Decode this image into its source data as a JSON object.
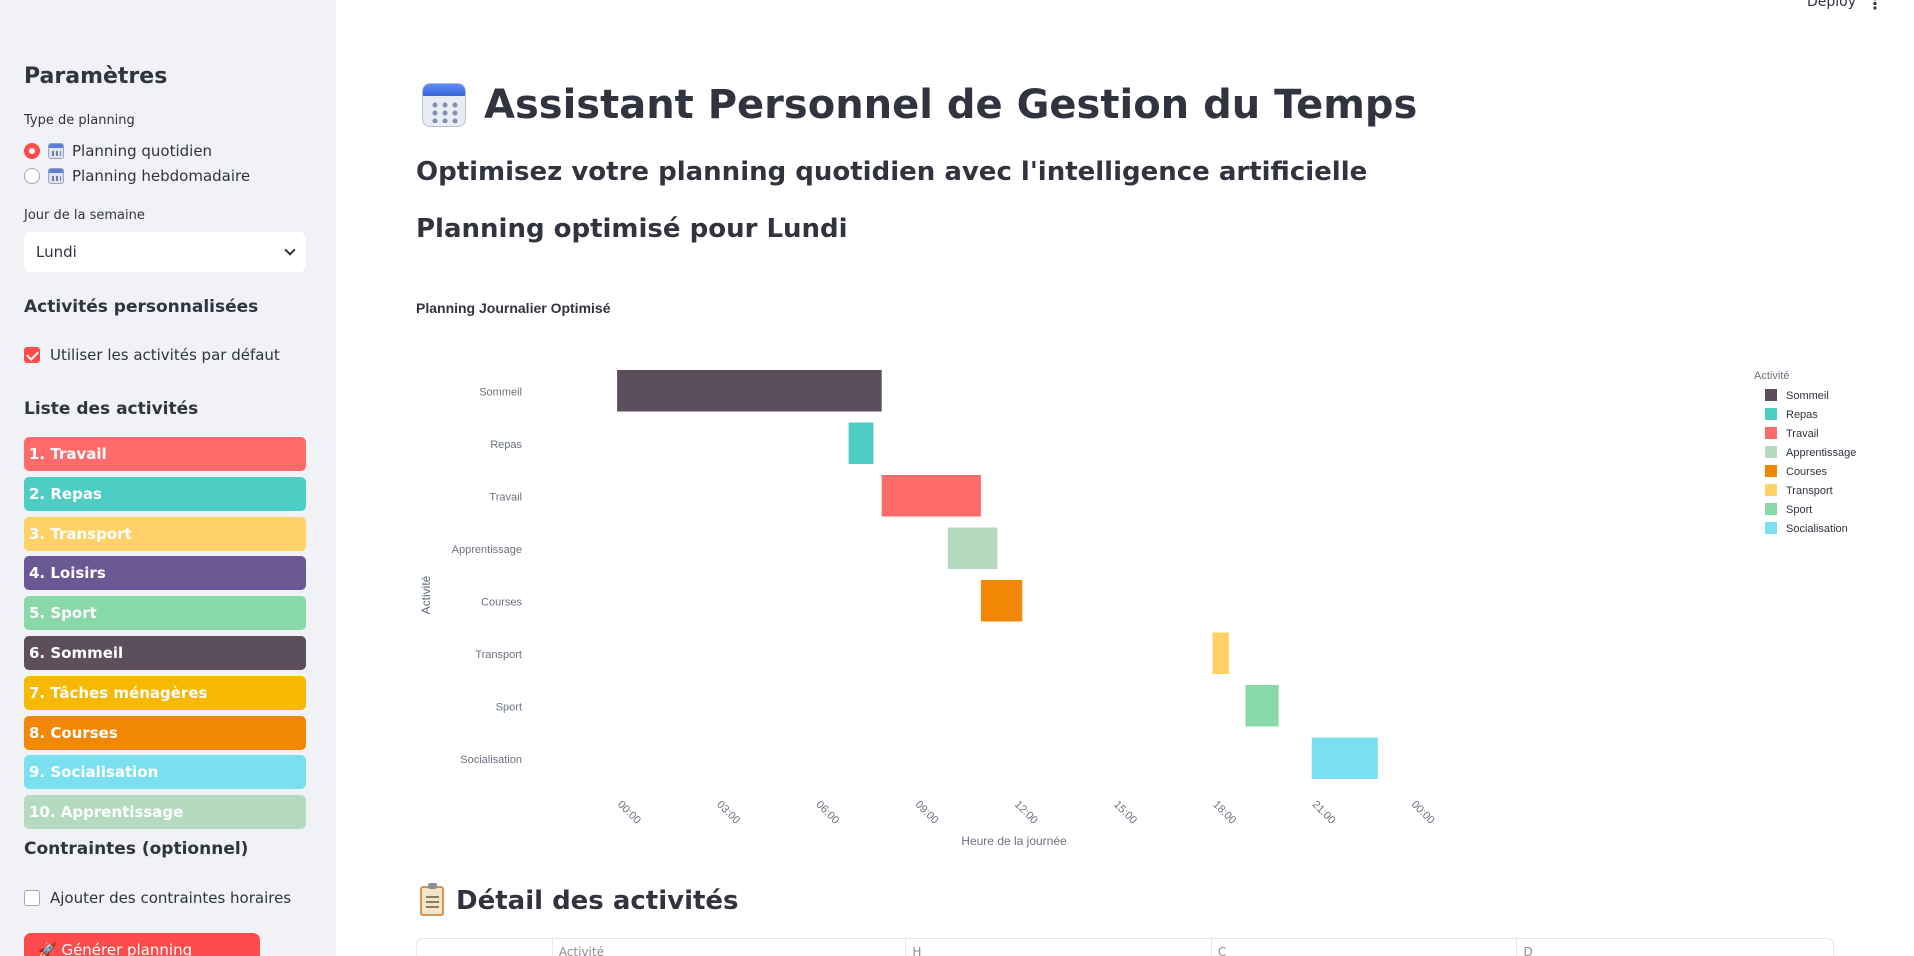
{
  "header": {
    "deploy_label": "Deploy",
    "menu_glyph": "⋮"
  },
  "sidebar": {
    "title": "Paramètres",
    "planning_type_label": "Type de planning",
    "planning_options": [
      {
        "label": "Planning quotidien",
        "selected": true
      },
      {
        "label": "Planning hebdomadaire",
        "selected": false
      }
    ],
    "day_label": "Jour de la semaine",
    "day_value": "Lundi",
    "custom_activities_title": "Activités personnalisées",
    "use_default_label": "Utiliser les activités par défaut",
    "use_default_checked": true,
    "activity_list_title": "Liste des activités",
    "activities": [
      {
        "label": "1. Travail",
        "color": "#FF6B6B"
      },
      {
        "label": "2. Repas",
        "color": "#4ECDC4"
      },
      {
        "label": "3. Transport",
        "color": "#FFD166"
      },
      {
        "label": "4. Loisirs",
        "color": "#6A5895"
      },
      {
        "label": "5. Sport",
        "color": "#88D8A8"
      },
      {
        "label": "6. Sommeil",
        "color": "#5D4E5B"
      },
      {
        "label": "7. Tâches ménagères",
        "color": "#F6B800"
      },
      {
        "label": "8. Courses",
        "color": "#F28705"
      },
      {
        "label": "9. Socialisation",
        "color": "#7AE0F0"
      },
      {
        "label": "10. Apprentissage",
        "color": "#B4DBBF"
      }
    ],
    "constraints_title": "Contraintes (optionnel)",
    "add_constraints_label": "Ajouter des contraintes horaires",
    "add_constraints_checked": false,
    "generate_label": "🚀 Générer planning quotidien"
  },
  "main": {
    "title": "Assistant Personnel de Gestion du Temps",
    "subtitle": "Optimisez votre planning quotidien avec l'intelligence artificielle",
    "plan_title": "Planning optimisé pour Lundi",
    "detail_title": "Détail des activités",
    "table_headers": [
      "",
      "Activité",
      "H",
      "C",
      "D"
    ]
  },
  "chart_data": {
    "type": "timeline",
    "title": "Planning Journalier Optimisé",
    "xlabel": "Heure de la journée",
    "ylabel": "Activité",
    "xlim": [
      -1,
      25
    ],
    "x_ticks": [
      "00:00",
      "03:00",
      "06:00",
      "09:00",
      "12:00",
      "15:00",
      "18:00",
      "21:00",
      "00:00"
    ],
    "x_tick_hours": [
      0,
      3,
      6,
      9,
      12,
      15,
      18,
      21,
      24
    ],
    "legend_title": "Activité",
    "legend_position": "top-right",
    "categories": [
      "Sommeil",
      "Repas",
      "Travail",
      "Apprentissage",
      "Courses",
      "Transport",
      "Sport",
      "Socialisation"
    ],
    "tasks": [
      {
        "activity": "Sommeil",
        "start": 0,
        "end": 8,
        "color": "#5D4E5B"
      },
      {
        "activity": "Repas",
        "start": 7,
        "end": 7.75,
        "color": "#4ECDC4"
      },
      {
        "activity": "Travail",
        "start": 8,
        "end": 11,
        "color": "#FF6B6B"
      },
      {
        "activity": "Apprentissage",
        "start": 10,
        "end": 11.5,
        "color": "#B4DBBF"
      },
      {
        "activity": "Courses",
        "start": 11,
        "end": 12.25,
        "color": "#F28705"
      },
      {
        "activity": "Transport",
        "start": 18,
        "end": 18.5,
        "color": "#FFD166"
      },
      {
        "activity": "Sport",
        "start": 19,
        "end": 20,
        "color": "#88D8A8"
      },
      {
        "activity": "Socialisation",
        "start": 21,
        "end": 23,
        "color": "#7AE0F0"
      }
    ],
    "legend": [
      {
        "label": "Sommeil",
        "color": "#5D4E5B"
      },
      {
        "label": "Repas",
        "color": "#4ECDC4"
      },
      {
        "label": "Travail",
        "color": "#FF6B6B"
      },
      {
        "label": "Apprentissage",
        "color": "#B4DBBF"
      },
      {
        "label": "Courses",
        "color": "#F28705"
      },
      {
        "label": "Transport",
        "color": "#FFD166"
      },
      {
        "label": "Sport",
        "color": "#88D8A8"
      },
      {
        "label": "Socialisation",
        "color": "#7AE0F0"
      }
    ]
  }
}
